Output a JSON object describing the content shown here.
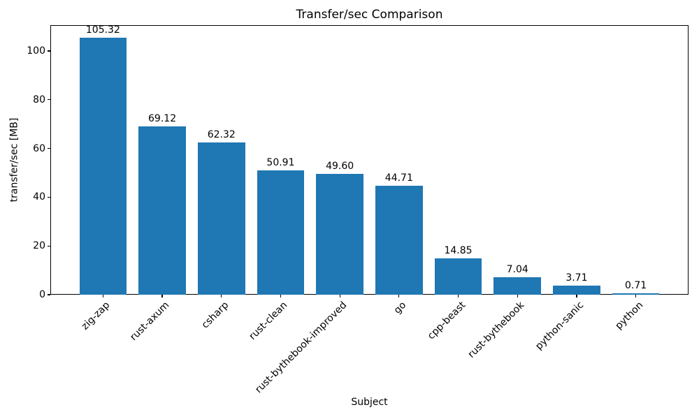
{
  "chart_data": {
    "type": "bar",
    "title": "Transfer/sec Comparison",
    "xlabel": "Subject",
    "ylabel": "transfer/sec [MB]",
    "categories": [
      "zig-zap",
      "rust-axum",
      "csharp",
      "rust-clean",
      "rust-bythebook-improved",
      "go",
      "cpp-beast",
      "rust-bythebook",
      "python-sanic",
      "python"
    ],
    "values": [
      105.32,
      69.12,
      62.32,
      50.91,
      49.6,
      44.71,
      14.85,
      7.04,
      3.71,
      0.71
    ],
    "bar_labels": [
      "105.32",
      "69.12",
      "62.32",
      "50.91",
      "49.60",
      "44.71",
      "14.85",
      "7.04",
      "3.71",
      "0.71"
    ],
    "yticks": [
      0,
      20,
      40,
      60,
      80,
      100
    ],
    "ytick_labels": [
      "0",
      "20",
      "40",
      "60",
      "80",
      "100"
    ],
    "ylim": [
      0,
      110.6
    ],
    "xtick_rotation": 45,
    "grid": false,
    "legend_position": "none",
    "bar_color": "#1f77b4",
    "background_color": "#ffffff",
    "text_color": "#000000"
  }
}
